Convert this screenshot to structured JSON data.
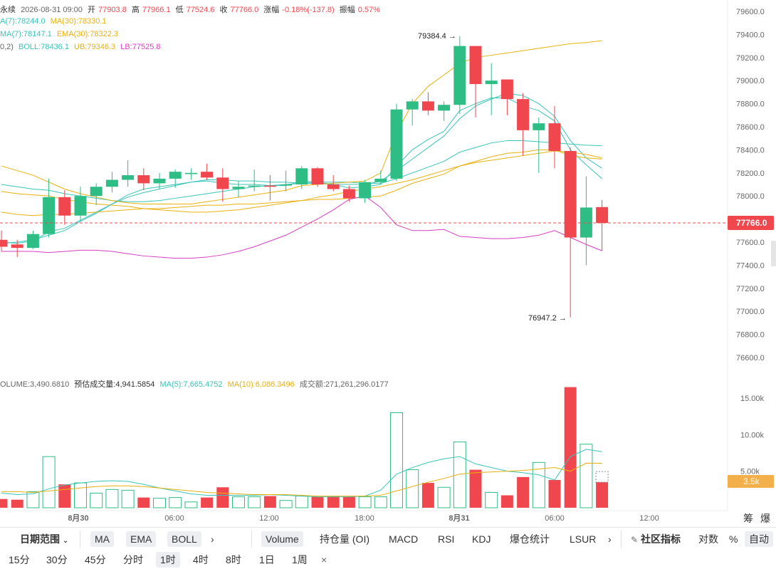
{
  "header": {
    "line1": {
      "name": "永续",
      "date": "2026-08-31 09:00",
      "open_label": "开",
      "open": "77903.8",
      "high_label": "高",
      "high": "77966.1",
      "low_label": "低",
      "low": "77524.6",
      "close_label": "收",
      "close": "77766.0",
      "change_label": "涨幅",
      "change": "-0.18%(-137.8)",
      "amp_label": "振幅",
      "amp": "0.57%"
    },
    "line2": {
      "ma7": "A(7):78244.0",
      "ma30": "MA(30):78330.1"
    },
    "line3": {
      "ema7": "MA(7):78147.1",
      "ema30": "EMA(30):78322.3"
    },
    "line4": {
      "prefix": "0,2)",
      "boll": "BOLL:78436.1",
      "ub": "UB:79346.3",
      "lb": "LB:77525.8"
    },
    "vol": {
      "volume": "OLUME:3,490.6810",
      "est": "预估成交量:4,941.5854",
      "ma5": "MA(5):7,665.4752",
      "ma10": "MA(10):6,086.3496",
      "turnover": "成交额:271,261,296.0177"
    }
  },
  "colors": {
    "up": "#2ebd85",
    "down": "#f0474f",
    "ma7": "#39c5bb",
    "ma30": "#e9b10f",
    "boll_mid": "#39c5bb",
    "ub": "#e9b10f",
    "lb": "#d63fc2",
    "price_tag": "#f0474f"
  },
  "chart_data": {
    "type": "candlestick",
    "price_axis": {
      "min": 76600,
      "max": 79600,
      "ticks": [
        "79600.0",
        "79400.0",
        "79200.0",
        "79000.0",
        "78800.0",
        "78600.0",
        "78400.0",
        "78200.0",
        "78000.0",
        "77800.0",
        "77600.0",
        "77400.0",
        "77200.0",
        "77000.0",
        "76800.0",
        "76600.0"
      ]
    },
    "current_price": "77766.0",
    "high_marker": "79384.4 →",
    "low_marker": "76947.2 →",
    "volume_axis": {
      "max": 17000,
      "ticks": [
        "15.00k",
        "10.00k",
        "5.00k"
      ],
      "current": "3.5k"
    },
    "time_labels": [
      "8月30",
      "06:00",
      "12:00",
      "18:00",
      "8月31",
      "06:00",
      "12:00"
    ],
    "candles": [
      {
        "o": 77620,
        "h": 77700,
        "l": 77520,
        "c": 77560,
        "v": 1200
      },
      {
        "o": 77580,
        "h": 77620,
        "l": 77470,
        "c": 77550,
        "v": 1100
      },
      {
        "o": 77550,
        "h": 77700,
        "l": 77540,
        "c": 77670,
        "v": 2200
      },
      {
        "o": 77670,
        "h": 78150,
        "l": 77640,
        "c": 77990,
        "v": 7000
      },
      {
        "o": 77990,
        "h": 78050,
        "l": 77750,
        "c": 77830,
        "v": 3200
      },
      {
        "o": 77830,
        "h": 78080,
        "l": 77780,
        "c": 78000,
        "v": 3400
      },
      {
        "o": 78000,
        "h": 78110,
        "l": 77920,
        "c": 78080,
        "v": 2000
      },
      {
        "o": 78080,
        "h": 78210,
        "l": 78030,
        "c": 78140,
        "v": 2500
      },
      {
        "o": 78140,
        "h": 78310,
        "l": 78080,
        "c": 78180,
        "v": 2400
      },
      {
        "o": 78180,
        "h": 78240,
        "l": 78050,
        "c": 78110,
        "v": 1400
      },
      {
        "o": 78110,
        "h": 78200,
        "l": 78060,
        "c": 78150,
        "v": 1300
      },
      {
        "o": 78150,
        "h": 78230,
        "l": 78070,
        "c": 78210,
        "v": 1400
      },
      {
        "o": 78190,
        "h": 78240,
        "l": 78140,
        "c": 78200,
        "v": 800
      },
      {
        "o": 78210,
        "h": 78280,
        "l": 78140,
        "c": 78160,
        "v": 1400
      },
      {
        "o": 78160,
        "h": 78240,
        "l": 77950,
        "c": 78060,
        "v": 2800
      },
      {
        "o": 78060,
        "h": 78130,
        "l": 77990,
        "c": 78080,
        "v": 1500
      },
      {
        "o": 78080,
        "h": 78230,
        "l": 78040,
        "c": 78090,
        "v": 1500
      },
      {
        "o": 78090,
        "h": 78180,
        "l": 77960,
        "c": 78080,
        "v": 1600
      },
      {
        "o": 78090,
        "h": 78220,
        "l": 78040,
        "c": 78100,
        "v": 1000
      },
      {
        "o": 78100,
        "h": 78260,
        "l": 78060,
        "c": 78240,
        "v": 1600
      },
      {
        "o": 78240,
        "h": 78250,
        "l": 78080,
        "c": 78100,
        "v": 1500
      },
      {
        "o": 78100,
        "h": 78180,
        "l": 78040,
        "c": 78060,
        "v": 1600
      },
      {
        "o": 78060,
        "h": 78090,
        "l": 77950,
        "c": 77980,
        "v": 1500
      },
      {
        "o": 77980,
        "h": 78140,
        "l": 77940,
        "c": 78120,
        "v": 1500
      },
      {
        "o": 78120,
        "h": 78220,
        "l": 78100,
        "c": 78150,
        "v": 1500
      },
      {
        "o": 78150,
        "h": 78800,
        "l": 78130,
        "c": 78750,
        "v": 13000
      },
      {
        "o": 78750,
        "h": 78840,
        "l": 78610,
        "c": 78820,
        "v": 5200
      },
      {
        "o": 78820,
        "h": 78900,
        "l": 78700,
        "c": 78740,
        "v": 3400
      },
      {
        "o": 78740,
        "h": 78820,
        "l": 78650,
        "c": 78790,
        "v": 2800
      },
      {
        "o": 78790,
        "h": 79384.4,
        "l": 78710,
        "c": 79300,
        "v": 9000
      },
      {
        "o": 79300,
        "h": 79300,
        "l": 78680,
        "c": 78970,
        "v": 5200
      },
      {
        "o": 78970,
        "h": 79150,
        "l": 78700,
        "c": 79000,
        "v": 2100
      },
      {
        "o": 79010,
        "h": 79010,
        "l": 78700,
        "c": 78840,
        "v": 1700
      },
      {
        "o": 78840,
        "h": 78890,
        "l": 78350,
        "c": 78570,
        "v": 4200
      },
      {
        "o": 78570,
        "h": 78680,
        "l": 78200,
        "c": 78630,
        "v": 6200
      },
      {
        "o": 78630,
        "h": 78780,
        "l": 78240,
        "c": 78390,
        "v": 3800
      },
      {
        "o": 78390,
        "h": 78420,
        "l": 76947.2,
        "c": 77640,
        "v": 16500
      },
      {
        "o": 77640,
        "h": 78170,
        "l": 77400,
        "c": 77900,
        "v": 8700
      },
      {
        "o": 77903.8,
        "h": 77966.1,
        "l": 77524.6,
        "c": 77766.0,
        "v": 3490.681
      }
    ],
    "series": [
      {
        "name": "MA(7)",
        "color": "#39c5bb",
        "values": [
          77590,
          77600,
          77620,
          77660,
          77700,
          77780,
          77850,
          77930,
          78010,
          78060,
          78080,
          78100,
          78120,
          78140,
          78140,
          78130,
          78130,
          78120,
          78120,
          78110,
          78110,
          78100,
          78100,
          78100,
          78130,
          78220,
          78320,
          78420,
          78520,
          78670,
          78780,
          78840,
          78890,
          78870,
          78800,
          78690,
          78480,
          78330,
          78240
        ]
      },
      {
        "name": "MA(30)",
        "color": "#e9b10f",
        "values": [
          78040,
          78020,
          78010,
          78000,
          77970,
          77950,
          77930,
          77920,
          77910,
          77890,
          77880,
          77870,
          77860,
          77860,
          77870,
          77880,
          77900,
          77920,
          77940,
          77960,
          77990,
          78010,
          78040,
          78060,
          78080,
          78110,
          78140,
          78180,
          78220,
          78260,
          78290,
          78310,
          78330,
          78350,
          78370,
          78390,
          78380,
          78360,
          78330
        ]
      },
      {
        "name": "EMA(7)",
        "color": "#39c5bb",
        "values": [
          77600,
          77590,
          77610,
          77690,
          77720,
          77790,
          77860,
          77930,
          77990,
          78030,
          78060,
          78090,
          78120,
          78130,
          78110,
          78100,
          78100,
          78090,
          78090,
          78130,
          78120,
          78100,
          78070,
          78080,
          78100,
          78260,
          78400,
          78490,
          78560,
          78740,
          78800,
          78850,
          78850,
          78780,
          78740,
          78650,
          78400,
          78270,
          78150
        ]
      },
      {
        "name": "EMA(30)",
        "color": "#e9b10f",
        "values": [
          77860,
          77840,
          77830,
          77840,
          77840,
          77850,
          77860,
          77870,
          77880,
          77890,
          77890,
          77900,
          77910,
          77920,
          77920,
          77930,
          77930,
          77940,
          77950,
          77960,
          77970,
          77970,
          77980,
          77990,
          78000,
          78050,
          78110,
          78150,
          78190,
          78260,
          78300,
          78340,
          78370,
          78380,
          78400,
          78400,
          78350,
          78330,
          78320
        ]
      },
      {
        "name": "BOLL",
        "color": "#39c5bb",
        "values": [
          78100,
          78080,
          78060,
          78050,
          78020,
          78000,
          77980,
          77960,
          77950,
          77950,
          77960,
          77980,
          78000,
          78020,
          78040,
          78060,
          78080,
          78090,
          78100,
          78110,
          78120,
          78120,
          78120,
          78110,
          78110,
          78150,
          78200,
          78250,
          78300,
          78380,
          78420,
          78460,
          78480,
          78480,
          78470,
          78460,
          78450,
          78440,
          78436
        ]
      },
      {
        "name": "UB",
        "color": "#e9b10f",
        "values": [
          78260,
          78220,
          78180,
          78120,
          78060,
          78020,
          77990,
          77960,
          77940,
          77930,
          77930,
          77930,
          77930,
          77950,
          77970,
          77990,
          78010,
          78030,
          78050,
          78090,
          78100,
          78110,
          78120,
          78130,
          78200,
          78550,
          78800,
          78950,
          79050,
          79150,
          79200,
          79220,
          79240,
          79260,
          79280,
          79300,
          79320,
          79330,
          79346
        ]
      },
      {
        "name": "LB",
        "color": "#d63fc2",
        "values": [
          77520,
          77520,
          77520,
          77510,
          77520,
          77530,
          77530,
          77520,
          77500,
          77480,
          77470,
          77460,
          77460,
          77470,
          77490,
          77520,
          77560,
          77610,
          77660,
          77730,
          77800,
          77880,
          77970,
          78000,
          77900,
          77750,
          77700,
          77700,
          77710,
          77650,
          77640,
          77630,
          77630,
          77640,
          77660,
          77700,
          77640,
          77580,
          77525
        ]
      },
      {
        "name": "VOL MA(5)",
        "color": "#39c5bb",
        "values": [
          2000,
          1800,
          1900,
          2600,
          3100,
          3400,
          3600,
          3700,
          3600,
          3200,
          2700,
          2300,
          1900,
          1700,
          1700,
          1700,
          1700,
          1800,
          1700,
          1600,
          1500,
          1500,
          1500,
          1600,
          2400,
          4600,
          5500,
          6200,
          6700,
          7000,
          6000,
          5500,
          5000,
          4800,
          4500,
          3800,
          7000,
          8000,
          7665
        ]
      },
      {
        "name": "VOL MA(10)",
        "color": "#e9b10f",
        "values": [
          2200,
          2200,
          2100,
          2300,
          2500,
          2700,
          2900,
          3000,
          3000,
          2900,
          2700,
          2500,
          2300,
          2100,
          2000,
          1900,
          1800,
          1800,
          1800,
          1700,
          1600,
          1600,
          1600,
          1600,
          1700,
          2300,
          2900,
          3500,
          4000,
          4600,
          4800,
          4900,
          5000,
          5100,
          5300,
          5500,
          5000,
          6100,
          6086
        ]
      }
    ]
  },
  "toolbar": {
    "range_label": "日期范围",
    "indicators": [
      "MA",
      "EMA",
      "BOLL"
    ],
    "sub_indicators": [
      "Volume",
      "持仓量 (OI)",
      "MACD",
      "RSI",
      "KDJ",
      "爆仓统计",
      "LSUR"
    ],
    "community": "社区指标",
    "log": "对数",
    "percent": "%",
    "auto": "自动",
    "chip": "筹",
    "burst": "爆"
  },
  "intervals": [
    "15分",
    "30分",
    "45分",
    "分时",
    "1时",
    "4时",
    "8时",
    "1日",
    "1周",
    "×"
  ]
}
